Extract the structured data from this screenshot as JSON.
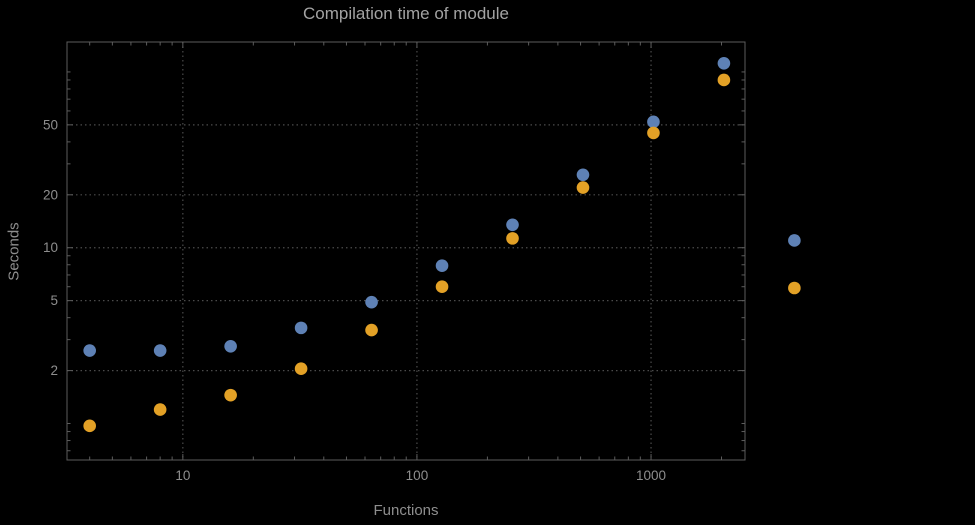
{
  "chart_data": {
    "type": "scatter",
    "title": "Compilation time of module",
    "xlabel": "Functions",
    "ylabel": "Seconds",
    "x_scale": "log",
    "y_scale": "log",
    "xlim": [
      3.2,
      2520
    ],
    "ylim": [
      0.62,
      148
    ],
    "grid": "dotted",
    "legend": "none",
    "x_ticks": [
      {
        "value": 10,
        "label": "10"
      },
      {
        "value": 100,
        "label": "100"
      },
      {
        "value": 1000,
        "label": "1000"
      }
    ],
    "y_ticks": [
      {
        "value": 2,
        "label": "2"
      },
      {
        "value": 5,
        "label": "5"
      },
      {
        "value": 10,
        "label": "10"
      },
      {
        "value": 20,
        "label": "20"
      },
      {
        "value": 50,
        "label": "50"
      }
    ],
    "x_minor_ticks": [
      4,
      5,
      6,
      7,
      8,
      9,
      20,
      30,
      40,
      50,
      60,
      70,
      80,
      90,
      200,
      300,
      400,
      500,
      600,
      700,
      800,
      900,
      2000
    ],
    "y_minor_ticks": [
      0.7,
      0.8,
      0.9,
      1,
      3,
      4,
      6,
      7,
      8,
      9,
      30,
      40,
      60,
      70,
      80,
      90,
      100
    ],
    "x_gridlines": [
      10,
      100,
      1000
    ],
    "y_gridlines": [
      2,
      5,
      10,
      20,
      50
    ],
    "x": [
      4,
      8,
      16,
      32,
      64,
      128,
      256,
      512,
      1024,
      2048,
      4096
    ],
    "series": [
      {
        "name": "blue",
        "color": "#5e81b5",
        "values": [
          2.6,
          2.6,
          2.75,
          3.5,
          4.9,
          7.9,
          13.5,
          26,
          52,
          112,
          11
        ]
      },
      {
        "name": "orange",
        "color": "#e3a126",
        "values": [
          0.97,
          1.2,
          1.45,
          2.05,
          3.4,
          6.0,
          11.3,
          22,
          45,
          90,
          5.9
        ]
      }
    ],
    "colors": {
      "background": "#000000",
      "frame": "#5c5c5c",
      "grid": "#4b4b4b",
      "tick_label": "#8e8e8e",
      "title": "#a3a3a3",
      "axis_label": "#8e8e8e"
    }
  }
}
